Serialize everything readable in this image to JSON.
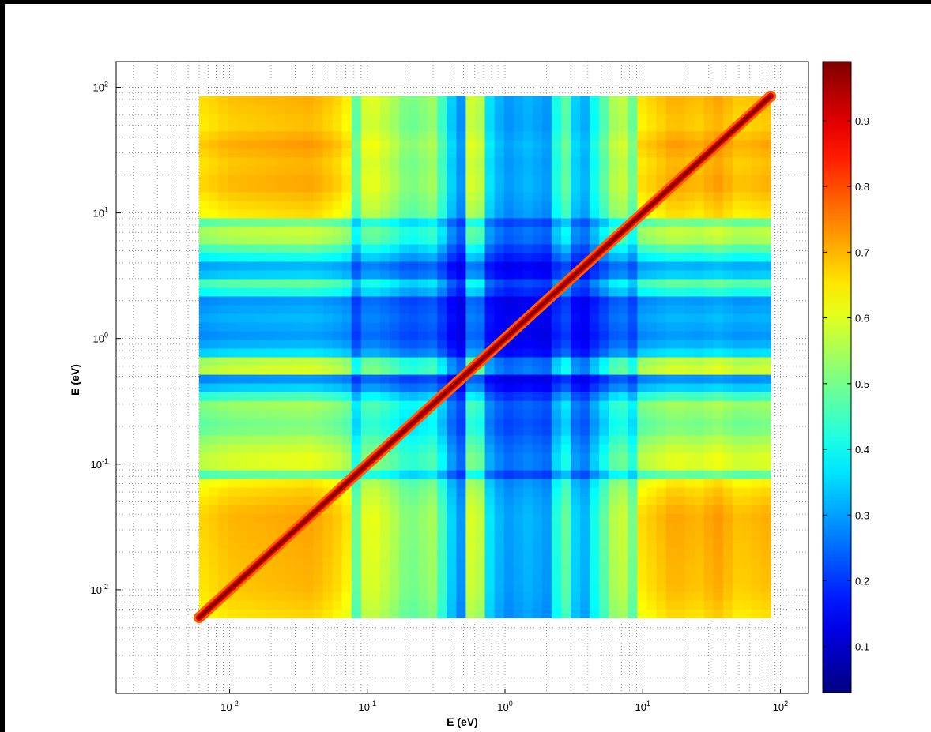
{
  "chart_data": {
    "type": "heatmap",
    "title": "",
    "xlabel": "E (eV)",
    "ylabel": "E (eV)",
    "xscale": "log",
    "yscale": "log",
    "xlim": [
      0.0015,
      160
    ],
    "ylim": [
      0.0015,
      160
    ],
    "data_extent": {
      "x": [
        0.006,
        85
      ],
      "y": [
        0.006,
        85
      ]
    },
    "grid": "on (major and minor, dotted)",
    "x_ticks": [
      {
        "value": 0.01,
        "base": "10",
        "exp": "-2"
      },
      {
        "value": 0.1,
        "base": "10",
        "exp": "-1"
      },
      {
        "value": 1,
        "base": "10",
        "exp": "0"
      },
      {
        "value": 10,
        "base": "10",
        "exp": "1"
      },
      {
        "value": 100,
        "base": "10",
        "exp": "2"
      }
    ],
    "y_ticks": [
      {
        "value": 0.01,
        "base": "10",
        "exp": "-2"
      },
      {
        "value": 0.1,
        "base": "10",
        "exp": "-1"
      },
      {
        "value": 1,
        "base": "10",
        "exp": "0"
      },
      {
        "value": 10,
        "base": "10",
        "exp": "1"
      },
      {
        "value": 100,
        "base": "10",
        "exp": "2"
      }
    ],
    "colorbar": {
      "colormap": "jet",
      "range": [
        0.03,
        0.99
      ],
      "ticks": [
        "0.1",
        "0.2",
        "0.3",
        "0.4",
        "0.5",
        "0.6",
        "0.7",
        "0.8",
        "0.9"
      ],
      "tick_values": [
        0.1,
        0.2,
        0.3,
        0.4,
        0.5,
        0.6,
        0.7,
        0.8,
        0.9
      ]
    },
    "description_values": {
      "diagonal_value": 1.0,
      "band_profile": [
        {
          "e": 0.006,
          "v": 0.62
        },
        {
          "e": 0.01,
          "v": 0.68
        },
        {
          "e": 0.02,
          "v": 0.7
        },
        {
          "e": 0.04,
          "v": 0.72
        },
        {
          "e": 0.07,
          "v": 0.62
        },
        {
          "e": 0.085,
          "v": 0.3
        },
        {
          "e": 0.1,
          "v": 0.55
        },
        {
          "e": 0.15,
          "v": 0.45
        },
        {
          "e": 0.2,
          "v": 0.35
        },
        {
          "e": 0.3,
          "v": 0.42
        },
        {
          "e": 0.4,
          "v": 0.18
        },
        {
          "e": 0.48,
          "v": 0.12
        },
        {
          "e": 0.6,
          "v": 0.65
        },
        {
          "e": 0.75,
          "v": 0.2
        },
        {
          "e": 1.0,
          "v": 0.12
        },
        {
          "e": 1.5,
          "v": 0.15
        },
        {
          "e": 2.0,
          "v": 0.12
        },
        {
          "e": 2.7,
          "v": 0.35
        },
        {
          "e": 3.5,
          "v": 0.1
        },
        {
          "e": 4.2,
          "v": 0.2
        },
        {
          "e": 5.5,
          "v": 0.35
        },
        {
          "e": 7.0,
          "v": 0.55
        },
        {
          "e": 8.0,
          "v": 0.15
        },
        {
          "e": 9.0,
          "v": 0.6
        },
        {
          "e": 12,
          "v": 0.65
        },
        {
          "e": 17,
          "v": 0.72
        },
        {
          "e": 25,
          "v": 0.68
        },
        {
          "e": 35,
          "v": 0.74
        },
        {
          "e": 50,
          "v": 0.66
        },
        {
          "e": 85,
          "v": 0.7
        }
      ]
    }
  }
}
